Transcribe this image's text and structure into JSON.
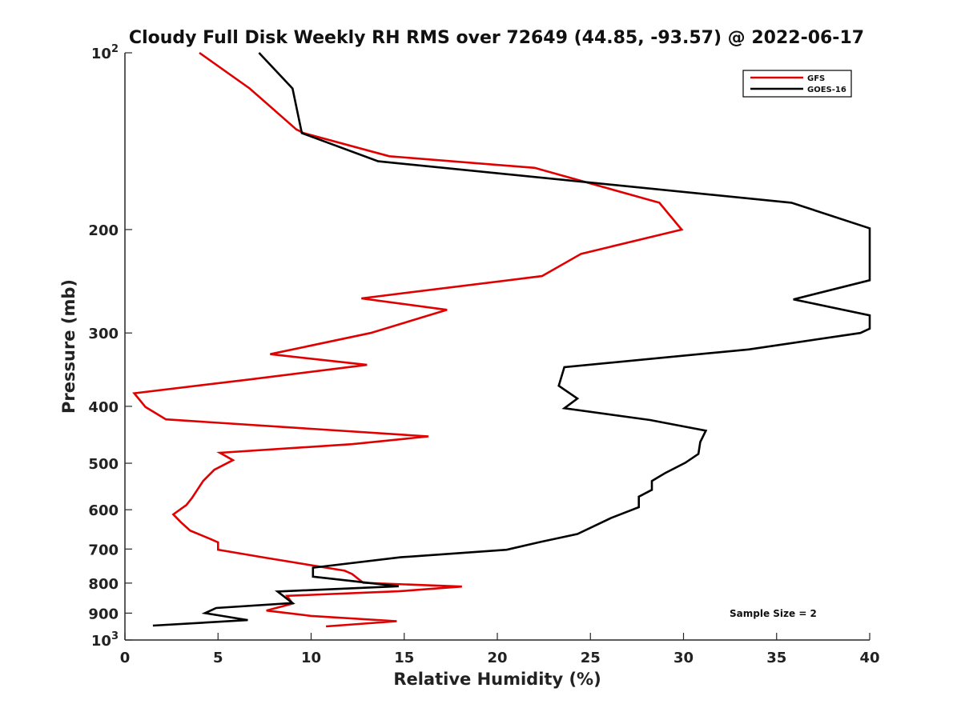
{
  "chart_data": {
    "type": "line",
    "title": "Cloudy Full Disk Weekly RH RMS over 72649 (44.85, -93.57) @ 2022-06-17",
    "xlabel": "Relative Humidity (%)",
    "ylabel": "Pressure (mb)",
    "xlim": [
      0,
      40
    ],
    "ylim": [
      100,
      1000
    ],
    "y_scale": "log",
    "y_reversed": true,
    "x_ticks": [
      0,
      5,
      10,
      15,
      20,
      25,
      30,
      35,
      40
    ],
    "y_ticks": [
      {
        "value": 100,
        "label": "10",
        "sup": "2"
      },
      {
        "value": 200,
        "label": "200"
      },
      {
        "value": 300,
        "label": "300"
      },
      {
        "value": 400,
        "label": "400"
      },
      {
        "value": 500,
        "label": "500"
      },
      {
        "value": 600,
        "label": "600"
      },
      {
        "value": 700,
        "label": "700"
      },
      {
        "value": 800,
        "label": "800"
      },
      {
        "value": 900,
        "label": "900"
      },
      {
        "value": 1000,
        "label": "10",
        "sup": "3"
      }
    ],
    "legend_position": "top-right",
    "annotation": "Sample Size = 2",
    "series": [
      {
        "name": "GFS",
        "color": "#e00000",
        "points": [
          [
            4.0,
            100
          ],
          [
            6.7,
            115
          ],
          [
            9.2,
            135
          ],
          [
            9.6,
            137
          ],
          [
            14.2,
            150
          ],
          [
            22.0,
            157
          ],
          [
            28.7,
            180
          ],
          [
            29.9,
            200
          ],
          [
            24.5,
            220
          ],
          [
            22.4,
            240
          ],
          [
            12.7,
            262
          ],
          [
            17.3,
            274
          ],
          [
            13.2,
            300
          ],
          [
            7.8,
            326
          ],
          [
            13.0,
            340
          ],
          [
            6.7,
            360
          ],
          [
            0.5,
            380
          ],
          [
            1.1,
            401
          ],
          [
            2.2,
            421
          ],
          [
            16.3,
            450
          ],
          [
            12.2,
            464
          ],
          [
            5.1,
            480
          ],
          [
            5.8,
            494
          ],
          [
            4.8,
            513
          ],
          [
            4.2,
            536
          ],
          [
            3.6,
            573
          ],
          [
            3.3,
            589
          ],
          [
            2.6,
            611
          ],
          [
            3.0,
            630
          ],
          [
            3.5,
            651
          ],
          [
            4.6,
            673
          ],
          [
            5.0,
            682
          ],
          [
            5.0,
            702
          ],
          [
            7.5,
            724
          ],
          [
            11.8,
            762
          ],
          [
            12.2,
            772
          ],
          [
            12.8,
            799
          ],
          [
            18.1,
            811
          ],
          [
            14.7,
            826
          ],
          [
            8.7,
            841
          ],
          [
            9.0,
            867
          ],
          [
            7.6,
            891
          ],
          [
            10.0,
            910
          ],
          [
            14.6,
            929
          ],
          [
            10.8,
            948
          ]
        ]
      },
      {
        "name": "GOES-16",
        "color": "#000000",
        "points": [
          [
            7.2,
            100
          ],
          [
            9.0,
            115
          ],
          [
            9.5,
            137
          ],
          [
            13.6,
            153
          ],
          [
            35.8,
            180
          ],
          [
            40.0,
            199
          ],
          [
            40.0,
            244
          ],
          [
            35.9,
            263
          ],
          [
            40.0,
            280
          ],
          [
            40.0,
            295
          ],
          [
            39.5,
            300
          ],
          [
            33.5,
            320
          ],
          [
            23.6,
            343
          ],
          [
            23.3,
            369
          ],
          [
            24.3,
            388
          ],
          [
            23.6,
            403
          ],
          [
            28.2,
            422
          ],
          [
            31.2,
            440
          ],
          [
            30.9,
            460
          ],
          [
            30.8,
            482
          ],
          [
            30.1,
            499
          ],
          [
            29.0,
            520
          ],
          [
            28.3,
            536
          ],
          [
            28.3,
            555
          ],
          [
            27.6,
            570
          ],
          [
            27.6,
            594
          ],
          [
            26.1,
            620
          ],
          [
            24.3,
            660
          ],
          [
            22.3,
            681
          ],
          [
            20.5,
            702
          ],
          [
            14.8,
            723
          ],
          [
            10.1,
            753
          ],
          [
            10.1,
            780
          ],
          [
            14.7,
            810
          ],
          [
            8.2,
            827
          ],
          [
            9.0,
            865
          ],
          [
            4.9,
            882
          ],
          [
            4.3,
            900
          ],
          [
            6.6,
            925
          ],
          [
            1.5,
            945
          ]
        ]
      }
    ]
  }
}
